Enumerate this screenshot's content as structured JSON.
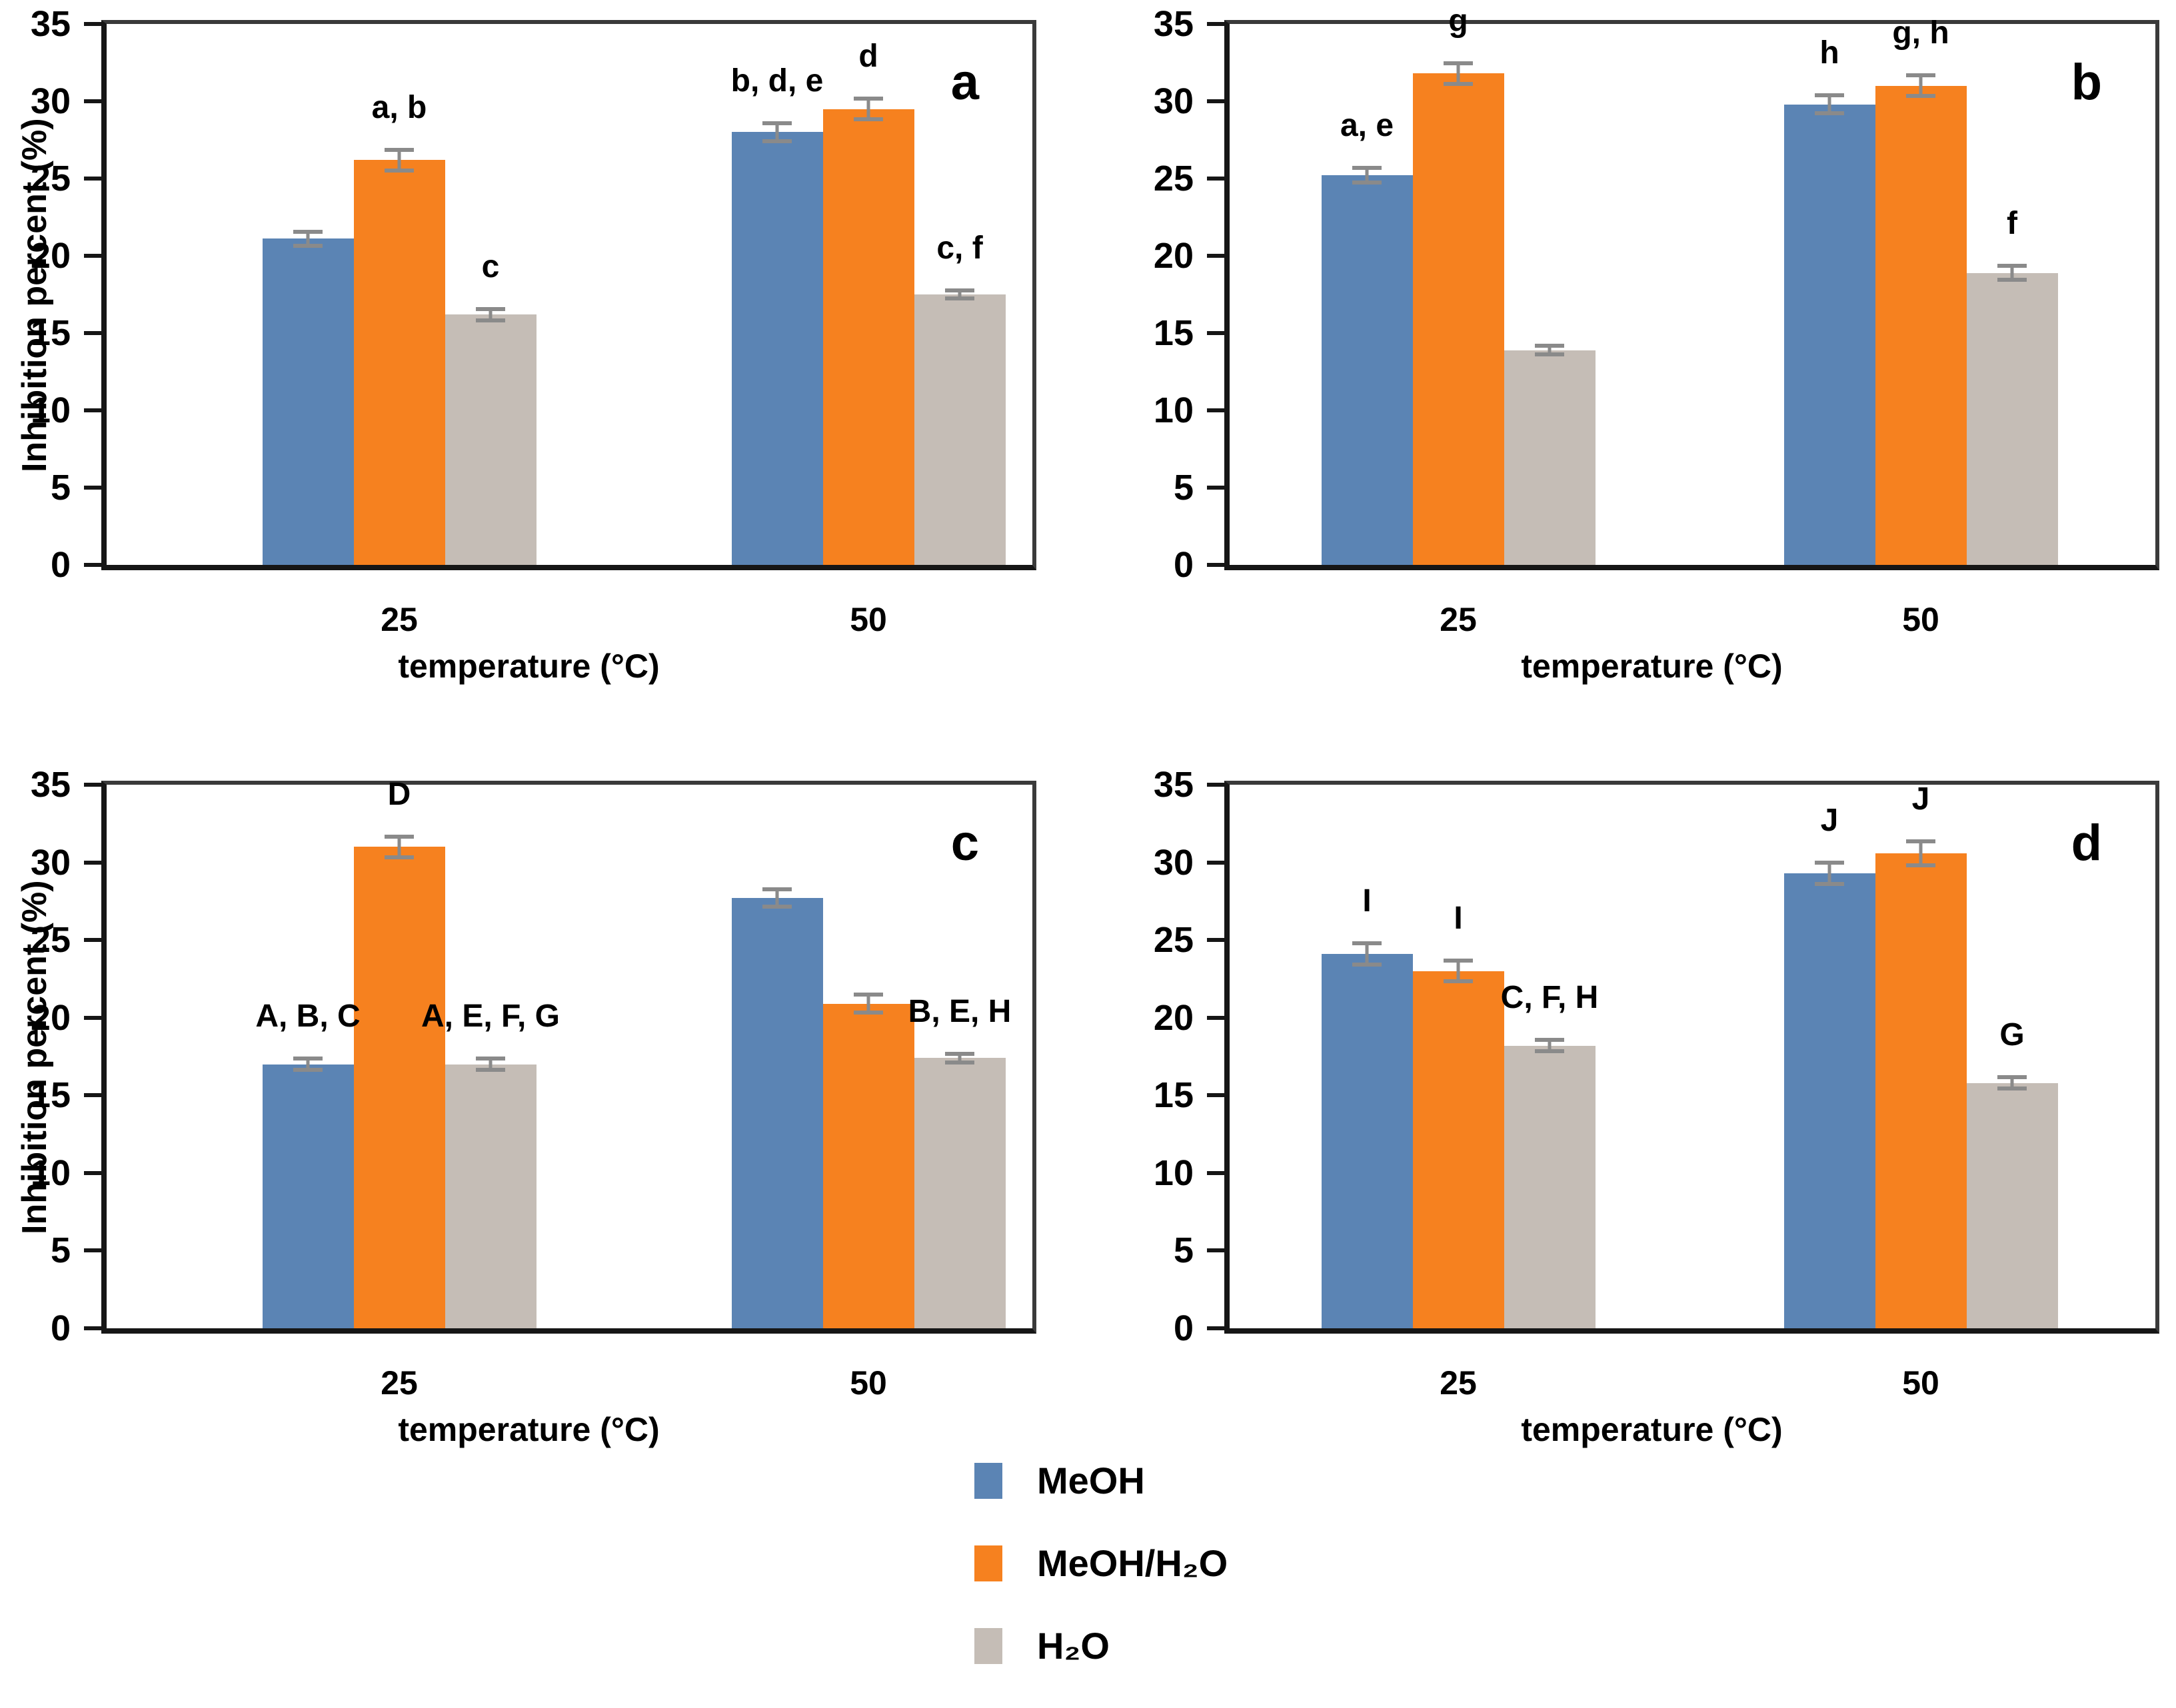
{
  "figure": {
    "background": "#ffffff",
    "text_color": "#000000",
    "frame_color": "#3a3a3a",
    "axis_color": "#161616",
    "error_bar_color": "#8a8a8a"
  },
  "series": [
    {
      "name": "MeOH",
      "color": "#5b84b4"
    },
    {
      "name": "MeOH/H₂O",
      "color": "#f6811f"
    },
    {
      "name": "H₂O",
      "color": "#c5bdb6"
    }
  ],
  "axis": {
    "ylabel": "Inhibition percent (%)",
    "xlabel": "temperature (°C)",
    "ymin": 0,
    "ymax": 35,
    "ystep": 5,
    "ytick_labels": [
      "0",
      "5",
      "10",
      "15",
      "20",
      "25",
      "30",
      "35"
    ],
    "categories": [
      "25",
      "50"
    ]
  },
  "chart_data": [
    {
      "type": "bar",
      "panel": "a",
      "title": "",
      "xlabel": "temperature (°C)",
      "ylabel": "Inhibition percent (%)",
      "ylim": [
        0,
        35
      ],
      "categories": [
        "25",
        "50"
      ],
      "show_y_title": true,
      "groups": [
        {
          "category": "25",
          "bars": [
            {
              "series": "MeOH",
              "value": 21.1,
              "error": 0.6,
              "label": ""
            },
            {
              "series": "MeOH/H₂O",
              "value": 26.2,
              "error": 0.8,
              "label": "a, b"
            },
            {
              "series": "H₂O",
              "value": 16.2,
              "error": 0.5,
              "label": "c"
            }
          ]
        },
        {
          "category": "50",
          "bars": [
            {
              "series": "MeOH",
              "value": 28.0,
              "error": 0.7,
              "label": "b, d, e"
            },
            {
              "series": "MeOH/H₂O",
              "value": 29.5,
              "error": 0.8,
              "label": "d"
            },
            {
              "series": "H₂O",
              "value": 17.5,
              "error": 0.4,
              "label": "c, f"
            }
          ]
        }
      ]
    },
    {
      "type": "bar",
      "panel": "b",
      "title": "",
      "xlabel": "temperature (°C)",
      "ylabel": "Inhibition percent (%)",
      "ylim": [
        0,
        35
      ],
      "categories": [
        "25",
        "50"
      ],
      "show_y_title": false,
      "groups": [
        {
          "category": "25",
          "bars": [
            {
              "series": "MeOH",
              "value": 25.2,
              "error": 0.6,
              "label": "a, e"
            },
            {
              "series": "MeOH/H₂O",
              "value": 31.8,
              "error": 0.8,
              "label": "g"
            },
            {
              "series": "H₂O",
              "value": 13.9,
              "error": 0.4,
              "label": ""
            }
          ]
        },
        {
          "category": "50",
          "bars": [
            {
              "series": "MeOH",
              "value": 29.8,
              "error": 0.7,
              "label": "h"
            },
            {
              "series": "MeOH/H₂O",
              "value": 31.0,
              "error": 0.8,
              "label": "g, h"
            },
            {
              "series": "H₂O",
              "value": 18.9,
              "error": 0.6,
              "label": "f"
            }
          ]
        }
      ]
    },
    {
      "type": "bar",
      "panel": "c",
      "title": "",
      "xlabel": "temperature (°C)",
      "ylabel": "Inhibition percent (%)",
      "ylim": [
        0,
        35
      ],
      "categories": [
        "25",
        "50"
      ],
      "show_y_title": true,
      "groups": [
        {
          "category": "25",
          "bars": [
            {
              "series": "MeOH",
              "value": 17.0,
              "error": 0.5,
              "label": "A, B, C"
            },
            {
              "series": "MeOH/H₂O",
              "value": 31.0,
              "error": 0.8,
              "label": "D"
            },
            {
              "series": "H₂O",
              "value": 17.0,
              "error": 0.5,
              "label": "A, E, F, G"
            }
          ]
        },
        {
          "category": "50",
          "bars": [
            {
              "series": "MeOH",
              "value": 27.7,
              "error": 0.7,
              "label": ""
            },
            {
              "series": "MeOH/H₂O",
              "value": 20.9,
              "error": 0.7,
              "label": ""
            },
            {
              "series": "H₂O",
              "value": 17.4,
              "error": 0.4,
              "label": "B, E, H"
            }
          ]
        }
      ]
    },
    {
      "type": "bar",
      "panel": "d",
      "title": "",
      "xlabel": "temperature (°C)",
      "ylabel": "Inhibition percent (%)",
      "ylim": [
        0,
        35
      ],
      "categories": [
        "25",
        "50"
      ],
      "show_y_title": false,
      "groups": [
        {
          "category": "25",
          "bars": [
            {
              "series": "MeOH",
              "value": 24.1,
              "error": 0.8,
              "label": "I"
            },
            {
              "series": "MeOH/H₂O",
              "value": 23.0,
              "error": 0.8,
              "label": "I"
            },
            {
              "series": "H₂O",
              "value": 18.2,
              "error": 0.5,
              "label": "C, F, H"
            }
          ]
        },
        {
          "category": "50",
          "bars": [
            {
              "series": "MeOH",
              "value": 29.3,
              "error": 0.8,
              "label": "J"
            },
            {
              "series": "MeOH/H₂O",
              "value": 30.6,
              "error": 0.9,
              "label": "J"
            },
            {
              "series": "H₂O",
              "value": 15.8,
              "error": 0.5,
              "label": "G"
            }
          ]
        }
      ]
    }
  ],
  "legend": {
    "items": [
      {
        "label": "MeOH"
      },
      {
        "label": "MeOH/H₂O"
      },
      {
        "label": "H₂O"
      }
    ]
  }
}
